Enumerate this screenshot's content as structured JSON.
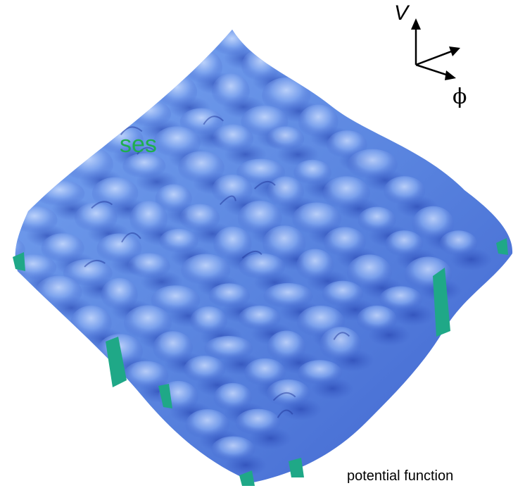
{
  "labels": {
    "green_text": "ses",
    "v_axis": "V",
    "phi_axis": "ϕ",
    "caption": "potential function"
  },
  "colors": {
    "surface_base": "#5b86e0",
    "surface_light": "#9cc0ff",
    "surface_dark": "#2a48b8",
    "valley_green": "#1fa887",
    "text_green": "#1fae4f"
  },
  "icons": [
    "axes-icon"
  ]
}
